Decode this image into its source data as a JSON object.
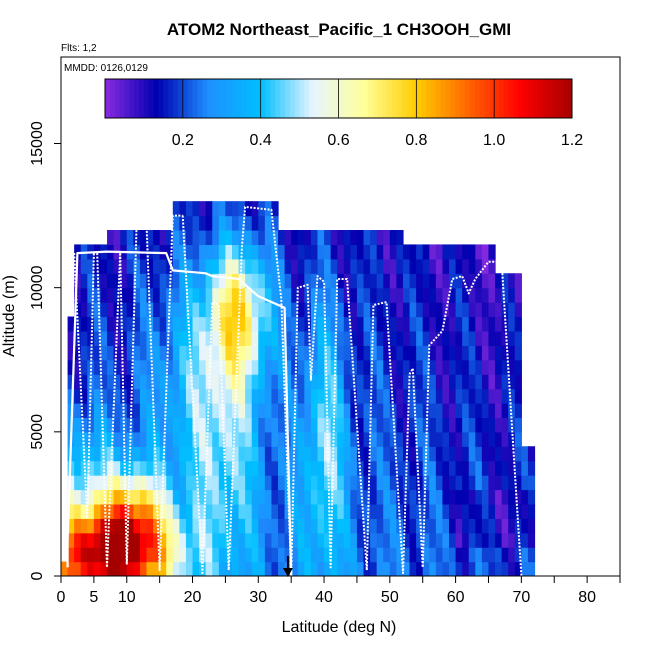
{
  "chart_data": {
    "type": "heatmap",
    "title": "ATOM2 Northeast_Pacific_1 CH3OOH_GMI",
    "subtitle_flights": "Flts: 1,2",
    "subtitle_dates": "MMDD: 0126,0129",
    "xlabel": "Latitude (deg N)",
    "ylabel": "Altitude (m)",
    "xlim": [
      0,
      85
    ],
    "ylim": [
      0,
      18000
    ],
    "x_ticks": [
      0,
      5,
      10,
      20,
      30,
      40,
      50,
      60,
      70,
      80
    ],
    "x_tick_labels": [
      "0",
      "5",
      "10",
      "20",
      "30",
      "40",
      "50",
      "60",
      "70",
      "80"
    ],
    "y_ticks": [
      0,
      5000,
      10000,
      15000
    ],
    "y_tick_labels": [
      "0",
      "5000",
      "10000",
      "15000"
    ],
    "colorbar": {
      "range": [
        0,
        1.2
      ],
      "ticks": [
        0.2,
        0.4,
        0.6,
        0.8,
        1.0,
        1.2
      ],
      "tick_labels": [
        "0.2",
        "0.4",
        "0.6",
        "0.8",
        "1.0",
        "1.2"
      ],
      "colors": [
        "#8a2be2",
        "#0000b0",
        "#1e90ff",
        "#00bfff",
        "#e6f4ff",
        "#ffff99",
        "#ffcc00",
        "#ff6600",
        "#ff0000",
        "#a50000"
      ]
    },
    "marker": {
      "x": 34.5,
      "y": 0
    },
    "flight_track": [
      [
        1,
        300
      ],
      [
        1,
        1200
      ],
      [
        2.5,
        11200
      ],
      [
        7,
        11250
      ],
      [
        16,
        11200
      ],
      [
        17,
        10600
      ],
      [
        22,
        10500
      ],
      [
        23,
        10400
      ],
      [
        27,
        10300
      ],
      [
        30,
        9700
      ],
      [
        34,
        9300
      ],
      [
        35,
        0
      ]
    ],
    "profiles": [
      [
        [
          2,
          11200
        ],
        [
          4,
          2000
        ],
        [
          5,
          11200
        ]
      ],
      [
        [
          5.5,
          11200
        ],
        [
          7,
          300
        ],
        [
          9,
          11200
        ]
      ],
      [
        [
          9,
          11200
        ],
        [
          10,
          400
        ],
        [
          11.5,
          12200
        ],
        [
          13,
          12200
        ],
        [
          15,
          200
        ],
        [
          17,
          12500
        ],
        [
          18.5,
          12500
        ]
      ],
      [
        [
          18.5,
          12500
        ],
        [
          21.5,
          100
        ],
        [
          23,
          9500
        ],
        [
          24,
          9400
        ],
        [
          25.5,
          200
        ],
        [
          27.5,
          11400
        ],
        [
          28,
          12800
        ],
        [
          32,
          12700
        ],
        [
          33.5,
          9600
        ],
        [
          35,
          0
        ]
      ],
      [
        [
          35,
          0
        ],
        [
          36,
          10000
        ],
        [
          37.5,
          10100
        ],
        [
          38,
          6800
        ],
        [
          39,
          10400
        ],
        [
          40,
          10200
        ],
        [
          41,
          300
        ],
        [
          42,
          10300
        ],
        [
          43.5,
          10300
        ],
        [
          46.5,
          200
        ],
        [
          47.5,
          9400
        ],
        [
          49.5,
          9500
        ],
        [
          52,
          100
        ],
        [
          53,
          7000
        ],
        [
          53.5,
          7200
        ],
        [
          55,
          300
        ],
        [
          56,
          8000
        ],
        [
          58,
          8500
        ],
        [
          59.5,
          10300
        ],
        [
          61,
          10400
        ],
        [
          62,
          9800
        ],
        [
          63,
          10300
        ],
        [
          65,
          10900
        ],
        [
          67,
          10900
        ],
        [
          70,
          0
        ]
      ]
    ]
  }
}
